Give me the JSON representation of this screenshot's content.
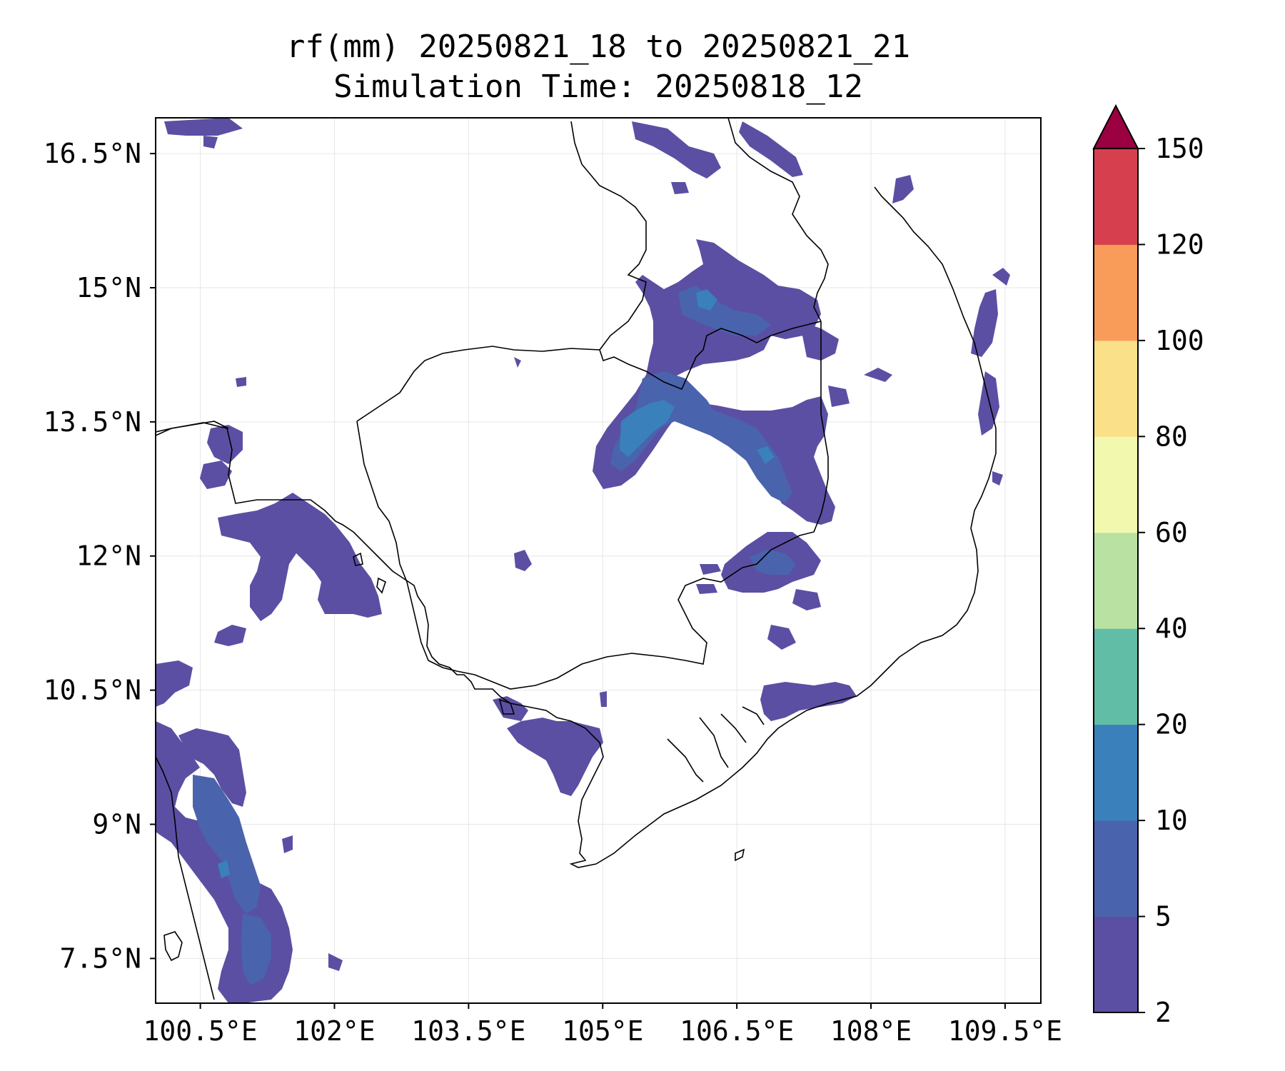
{
  "title": {
    "line1": "rf(mm) 20250821_18 to 20250821_21",
    "line2": "Simulation Time: 20250818_12"
  },
  "map": {
    "lon_range": [
      100,
      109.9
    ],
    "lat_range": [
      7,
      16.9
    ],
    "x_ticks": [
      "100.5°E",
      "102°E",
      "103.5°E",
      "105°E",
      "106.5°E",
      "108°E",
      "109.5°E"
    ],
    "y_ticks": [
      "16.5°N",
      "15°N",
      "13.5°N",
      "12°N",
      "10.5°N",
      "9°N",
      "7.5°N"
    ],
    "grid": true
  },
  "colorbar": {
    "levels": [
      "2",
      "5",
      "10",
      "20",
      "40",
      "60",
      "80",
      "100",
      "120",
      "150"
    ],
    "colors": [
      "#5b4fa3",
      "#4a63ad",
      "#3a80bb",
      "#62bda7",
      "#b9e1a2",
      "#f2f8ad",
      "#fbe08a",
      "#f99c5a",
      "#d6404e",
      "#9b0041"
    ],
    "extend": "max"
  }
}
